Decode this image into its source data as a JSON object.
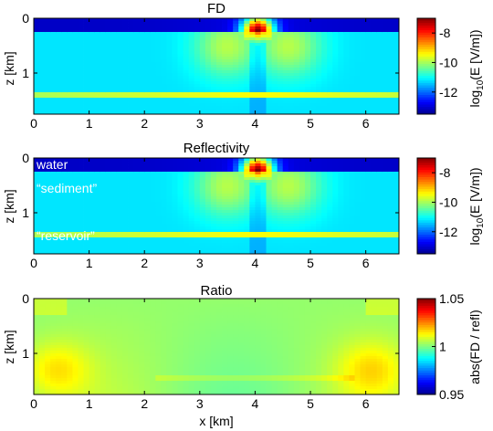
{
  "colors": {
    "jet": [
      "#00008f",
      "#0000ff",
      "#0080ff",
      "#00ffff",
      "#80ff80",
      "#ffff00",
      "#ff8000",
      "#ff0000",
      "#800000"
    ]
  },
  "chart_data": [
    {
      "type": "heatmap",
      "title": "FD",
      "xlim": [
        0,
        6.6
      ],
      "ylim": [
        1.75,
        0
      ],
      "ylabel": "z [km]",
      "xticks": [
        "0",
        "1",
        "2",
        "3",
        "4",
        "5",
        "6"
      ],
      "yticks": [
        "0",
        "1"
      ],
      "colorbar": {
        "label_main": "log",
        "label_sub": "10",
        "label_rest": "(E [V/m])",
        "ticks": [
          "-8",
          "-10",
          "-12"
        ],
        "tick_values": [
          -8,
          -10,
          -12
        ],
        "clim": [
          -13.5,
          -7
        ]
      },
      "field": {
        "source_x": 4.05,
        "source_z": 0.25,
        "water_depth": 0.25,
        "reservoir_z": [
          1.36,
          1.44
        ]
      },
      "annotations": []
    },
    {
      "type": "heatmap",
      "title": "Reflectivity",
      "xlim": [
        0,
        6.6
      ],
      "ylim": [
        1.75,
        0
      ],
      "ylabel": "z [km]",
      "xticks": [
        "0",
        "1",
        "2",
        "3",
        "4",
        "5",
        "6"
      ],
      "yticks": [
        "0",
        "1"
      ],
      "colorbar": {
        "label_main": "log",
        "label_sub": "10",
        "label_rest": "(E [V/m])",
        "ticks": [
          "-8",
          "-10",
          "-12"
        ],
        "tick_values": [
          -8,
          -10,
          -12
        ],
        "clim": [
          -13.5,
          -7
        ]
      },
      "field": {
        "source_x": 4.05,
        "source_z": 0.25,
        "water_depth": 0.25,
        "reservoir_z": [
          1.36,
          1.44
        ]
      },
      "annotations": [
        {
          "text": "water",
          "x": 0.05,
          "z": 0.12
        },
        {
          "text": "“sediment”",
          "x": 0.05,
          "z": 0.55
        },
        {
          "text": "“reservoir”",
          "x": 0.05,
          "z": 1.42
        }
      ]
    },
    {
      "type": "heatmap",
      "title": "Ratio",
      "xlim": [
        0,
        6.6
      ],
      "ylim": [
        1.75,
        0
      ],
      "ylabel": "z [km]",
      "xlabel": "x [km]",
      "xticks": [
        "0",
        "1",
        "2",
        "3",
        "4",
        "5",
        "6"
      ],
      "yticks": [
        "0",
        "1"
      ],
      "colorbar": {
        "label_main": "abs(FD / refl)",
        "label_sub": "",
        "label_rest": "",
        "ticks": [
          "1.05",
          "1",
          "0.95"
        ],
        "tick_values": [
          1.05,
          1.0,
          0.95
        ],
        "clim": [
          0.95,
          1.05
        ]
      },
      "annotations": []
    }
  ]
}
